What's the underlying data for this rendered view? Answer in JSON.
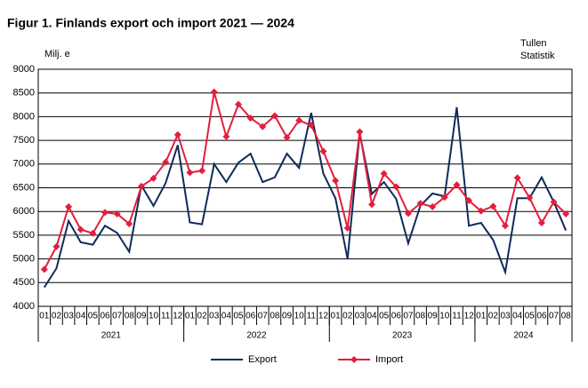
{
  "chart_data": {
    "type": "line",
    "title": "Figur 1. Finlands export och import 2021 — 2024",
    "y_label": "Milj. e",
    "source": [
      "Tullen",
      "Statistik"
    ],
    "categories": [
      "01",
      "02",
      "03",
      "04",
      "05",
      "06",
      "07",
      "08",
      "09",
      "10",
      "11",
      "12",
      "01",
      "02",
      "03",
      "04",
      "05",
      "06",
      "07",
      "08",
      "09",
      "10",
      "11",
      "12",
      "01",
      "02",
      "03",
      "04",
      "05",
      "06",
      "07",
      "08",
      "09",
      "10",
      "11",
      "12",
      "01",
      "02",
      "03",
      "04",
      "05",
      "06",
      "07",
      "08"
    ],
    "years": [
      "2021",
      "2022",
      "2023",
      "2024"
    ],
    "series": [
      {
        "name": "Export",
        "color": "#0f2b5b",
        "marker": false,
        "values": [
          4400,
          4800,
          5800,
          5350,
          5300,
          5700,
          5550,
          5150,
          6550,
          6120,
          6600,
          7400,
          5770,
          5730,
          7000,
          6620,
          7030,
          7220,
          6620,
          6720,
          7220,
          6920,
          8080,
          6800,
          6280,
          5000,
          7650,
          6370,
          6620,
          6270,
          5330,
          6120,
          6380,
          6320,
          8200,
          5700,
          5760,
          5400,
          4720,
          6280,
          6280,
          6720,
          6200,
          5600
        ]
      },
      {
        "name": "Import",
        "color": "#e31e3c",
        "marker": true,
        "values": [
          4780,
          5260,
          6100,
          5620,
          5540,
          5980,
          5950,
          5740,
          6530,
          6700,
          7040,
          7620,
          6820,
          6860,
          8520,
          7580,
          8260,
          7970,
          7790,
          8020,
          7560,
          7920,
          7820,
          7270,
          6650,
          5650,
          7680,
          6150,
          6800,
          6520,
          5960,
          6170,
          6100,
          6300,
          6560,
          6230,
          6010,
          6110,
          5700,
          6710,
          6290,
          5760,
          6200,
          5950
        ]
      }
    ],
    "ylim": [
      4000,
      9000
    ],
    "yticks": [
      4000,
      4500,
      5000,
      5500,
      6000,
      6500,
      7000,
      7500,
      8000,
      8500,
      9000
    ],
    "grid": true
  }
}
